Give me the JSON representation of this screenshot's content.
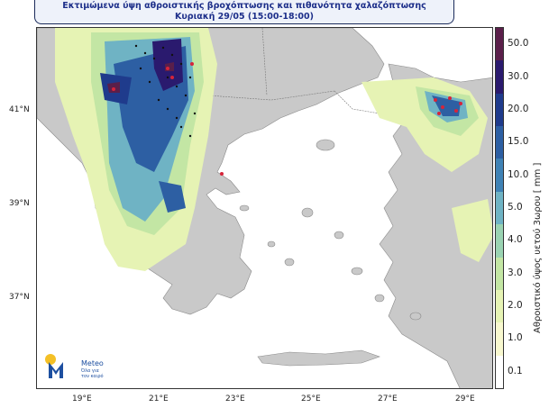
{
  "header": {
    "title_line1": "Εκτιμώμενα ύψη αθροιστικής βροχόπτωσης και πιθανότητα χαλαζόπτωσης",
    "title_line2": "Κυριακή 29/05 (15:00-18:00)"
  },
  "axes": {
    "lat_ticks": [
      "41°N",
      "39°N",
      "37°N"
    ],
    "lon_ticks": [
      "19°E",
      "21°E",
      "23°E",
      "25°E",
      "27°E",
      "29°E"
    ]
  },
  "colorbar": {
    "title": "Αθροιστικό ύψος υετού 3ωρου [ mm ]",
    "levels": [
      "50.0",
      "30.0",
      "20.0",
      "15.0",
      "10.0",
      "5.0",
      "4.0",
      "3.0",
      "2.0",
      "1.0",
      "0.1"
    ],
    "colors": [
      "#5a1f4a",
      "#2a1a6e",
      "#1f3b8c",
      "#2d5fa3",
      "#3f82b5",
      "#6fb3c4",
      "#9ad3b2",
      "#c3e6a4",
      "#e6f3b4",
      "#f8f8cf",
      "#ffffff"
    ]
  },
  "logo": {
    "brand": "Meteo",
    "tagline_1": "Όλα για",
    "tagline_2": "τον καιρό"
  }
}
